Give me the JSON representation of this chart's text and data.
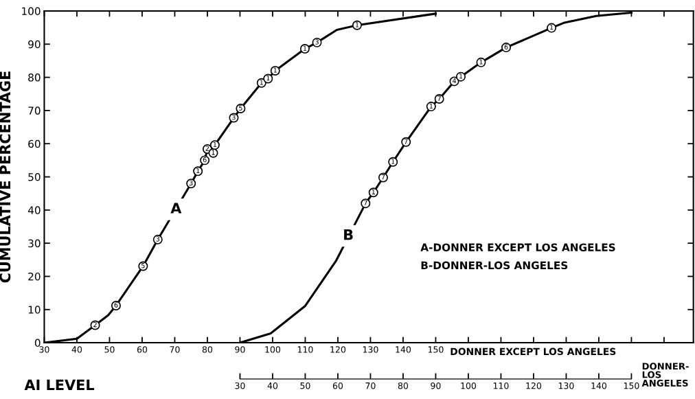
{
  "chart_data": {
    "type": "line",
    "xlabel": "DONNER EXCEPT LOS ANGELES",
    "x2label": "DONNER-\nLOS\nANGELES",
    "ylabel": "CUMULATIVE PERCENTAGE",
    "xlim": [
      30,
      229
    ],
    "xticks": [
      30,
      40,
      50,
      60,
      70,
      80,
      90,
      100,
      110,
      120,
      130,
      140,
      150,
      {
        "value": 160,
        "label": null
      },
      {
        "value": 170,
        "label": null
      },
      {
        "value": 180,
        "label": null
      },
      {
        "value": 190,
        "label": null
      },
      {
        "value": 200,
        "label": null
      },
      {
        "value": 210,
        "label": null
      },
      {
        "value": 220,
        "label": null
      }
    ],
    "x2lim": [
      -30,
      169
    ],
    "x2ticks": [
      30,
      40,
      50,
      60,
      70,
      80,
      90,
      100,
      110,
      120,
      130,
      140,
      150
    ],
    "ylim": [
      0,
      100
    ],
    "yticks": [
      0,
      10,
      20,
      30,
      40,
      50,
      60,
      70,
      80,
      90,
      100
    ],
    "grid": false,
    "line_style": "solid",
    "series": [
      {
        "color": "#000000",
        "x": [
          30,
          40,
          45.6,
          49.6,
          52.0,
          60.3,
          64.8,
          75.0,
          77.1,
          79.2,
          80.0,
          81.8,
          82.3,
          88.1,
          90.2,
          96.6,
          98.6,
          100.8,
          109.9,
          113.6,
          119.7,
          125.9,
          150
        ],
        "values": [
          0,
          1.2,
          5.3,
          8.3,
          11.2,
          23.1,
          31.1,
          48.0,
          51.7,
          55.0,
          58.4,
          57.2,
          59.6,
          67.8,
          70.6,
          78.3,
          79.6,
          82.0,
          88.6,
          90.5,
          94.3,
          95.7,
          99.2
        ]
      },
      {
        "color": "#000000",
        "axis": "x2",
        "x": [
          30,
          39.4,
          50,
          59.4,
          68.5,
          70.9,
          73.9,
          76.9,
          80.9,
          88.6,
          91.1,
          95.7,
          97.7,
          103.9,
          111.6,
          125.5,
          129.5,
          139.2,
          150
        ],
        "values": [
          0,
          2.8,
          11.1,
          24.6,
          42.0,
          45.3,
          49.8,
          54.5,
          60.5,
          71.2,
          73.5,
          78.8,
          80.2,
          84.5,
          89.0,
          94.9,
          96.5,
          98.5,
          99.5
        ]
      }
    ],
    "annotations": [
      {
        "text": "A",
        "x": 70.4,
        "y": 40.2
      },
      {
        "text": "B",
        "x": 123.2,
        "y": 32.2
      },
      "A-DONNER EXCEPT LOS ANGELES",
      "B-DONNER-LOS ANGELES",
      "AI LEVEL",
      {
        "text": "2",
        "x": 45.6,
        "y": 5.3
      },
      {
        "text": "6",
        "x": 52.0,
        "y": 11.2
      },
      {
        "text": "5",
        "x": 60.3,
        "y": 23.1
      },
      {
        "text": "3",
        "x": 64.8,
        "y": 31.1
      },
      {
        "text": "3",
        "x": 75.0,
        "y": 48.0
      },
      {
        "text": "1",
        "x": 77.1,
        "y": 51.7
      },
      {
        "text": "6",
        "x": 79.2,
        "y": 55.0
      },
      {
        "text": "2",
        "x": 80.0,
        "y": 58.4
      },
      {
        "text": "1",
        "x": 81.8,
        "y": 57.2
      },
      {
        "text": "1",
        "x": 82.3,
        "y": 59.6
      },
      {
        "text": "3",
        "x": 88.1,
        "y": 67.8
      },
      {
        "text": "5",
        "x": 90.2,
        "y": 70.6
      },
      {
        "text": "1",
        "x": 96.6,
        "y": 78.3
      },
      {
        "text": "1",
        "x": 98.6,
        "y": 79.6
      },
      {
        "text": "1",
        "x": 100.8,
        "y": 82.0
      },
      {
        "text": "1",
        "x": 109.9,
        "y": 88.6
      },
      {
        "text": "3",
        "x": 113.6,
        "y": 90.5
      },
      {
        "text": "1",
        "x": 125.9,
        "y": 95.7
      },
      {
        "text": "7",
        "x": 128.5,
        "y": 42.0
      },
      {
        "text": "1",
        "x": 130.9,
        "y": 45.3
      },
      {
        "text": "7",
        "x": 133.9,
        "y": 49.8
      },
      {
        "text": "1",
        "x": 136.9,
        "y": 54.5
      },
      {
        "text": "7",
        "x": 140.9,
        "y": 60.5
      },
      {
        "text": "1",
        "x": 148.6,
        "y": 71.2
      },
      {
        "text": "7",
        "x": 151.1,
        "y": 73.5
      },
      {
        "text": "4",
        "x": 155.7,
        "y": 78.8
      },
      {
        "text": "1",
        "x": 157.7,
        "y": 80.2
      },
      {
        "text": "1",
        "x": 163.9,
        "y": 84.5
      },
      {
        "text": "6",
        "x": 171.6,
        "y": 89.0
      },
      {
        "text": "1",
        "x": 185.5,
        "y": 94.9
      }
    ]
  }
}
